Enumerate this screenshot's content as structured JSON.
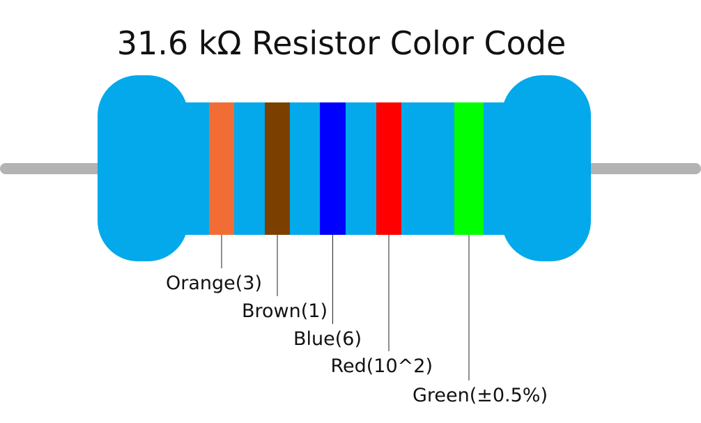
{
  "title": "31.6 kΩ Resistor Color Code",
  "bands": [
    {
      "label": "Orange(3)",
      "color": "#f26d35"
    },
    {
      "label": "Brown(1)",
      "color": "#7b3f00"
    },
    {
      "label": "Blue(6)",
      "color": "#0000ff"
    },
    {
      "label": "Red(10^2)",
      "color": "#ff0000"
    },
    {
      "label": "Green(±0.5%)",
      "color": "#00ff00"
    }
  ]
}
